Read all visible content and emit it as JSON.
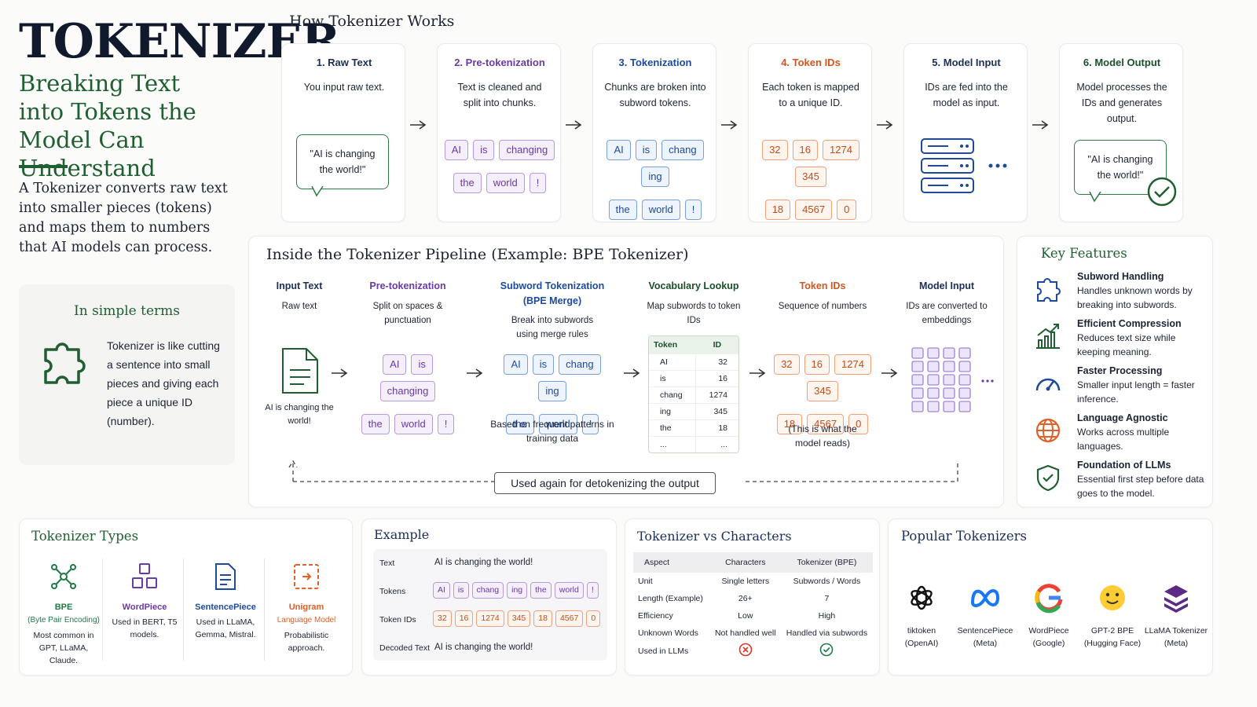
{
  "header": {
    "title": "TOKENIZER",
    "subtitle": "Breaking Text into Tokens the Model Can Understand",
    "description": "A Tokenizer converts raw text into smaller pieces (tokens) and maps them to numbers that AI models can process."
  },
  "simple_terms": {
    "title": "In simple terms",
    "text": "Tokenizer is like cutting a sentence into small pieces and giving each piece a unique ID (number)."
  },
  "how_it_works": {
    "title": "How Tokenizer Works",
    "steps": [
      {
        "title": "1. Raw Text",
        "text": "You input raw text.",
        "bubble": "\"AI is changing the world!\""
      },
      {
        "title": "2. Pre-tokenization",
        "text": "Text is cleaned and split into chunks.",
        "chunks": [
          "AI",
          "is",
          "changing",
          "the",
          "world",
          "!"
        ]
      },
      {
        "title": "3. Tokenization",
        "text": "Chunks are broken into subword tokens.",
        "chunks": [
          "AI",
          "is",
          "chang",
          "ing",
          "the",
          "world",
          "!"
        ]
      },
      {
        "title": "4. Token IDs",
        "text": "Each token is mapped to a unique ID.",
        "ids": [
          32,
          16,
          1274,
          345,
          18,
          4567,
          0
        ]
      },
      {
        "title": "5. Model Input",
        "text": "IDs are fed into the model as input."
      },
      {
        "title": "6. Model Output",
        "text": "Model processes the IDs and generates output.",
        "bubble": "\"AI is changing the world!\""
      }
    ]
  },
  "pipeline": {
    "title": "Inside the Tokenizer Pipeline (Example: BPE Tokenizer)",
    "stages": [
      {
        "title": "Input Text",
        "text": "Raw text",
        "caption": "AI is changing the world!"
      },
      {
        "title": "Pre-tokenization",
        "text": "Split on spaces & punctuation",
        "chunks": [
          "AI",
          "is",
          "changing",
          "the",
          "world",
          "!"
        ]
      },
      {
        "title": "Subword Tokenization (BPE Merge)",
        "text": "Break into subwords using merge rules",
        "chunks": [
          "AI",
          "is",
          "chang",
          "ing",
          "the",
          "world",
          "!"
        ],
        "caption": "Based on frequent patterns in training data"
      },
      {
        "title": "Vocabulary Lookup",
        "text": "Map subwords to token IDs",
        "table": {
          "header": [
            "Token",
            "ID"
          ],
          "rows": [
            [
              "AI",
              32
            ],
            [
              "is",
              16
            ],
            [
              "chang",
              1274
            ],
            [
              "ing",
              345
            ],
            [
              "the",
              18
            ],
            [
              "...",
              "..."
            ]
          ]
        }
      },
      {
        "title": "Token IDs",
        "text": "Sequence of numbers",
        "ids": [
          32,
          16,
          1274,
          345,
          18,
          4567,
          0
        ],
        "caption": "(This is what the model reads)"
      },
      {
        "title": "Model Input",
        "text": "IDs are converted to embeddings"
      }
    ],
    "loop_label": "Used again for detokenizing the output"
  },
  "key_features": {
    "title": "Key Features",
    "items": [
      {
        "title": "Subword Handling",
        "text": "Handles unknown words by breaking into subwords."
      },
      {
        "title": "Efficient Compression",
        "text": "Reduces text size while keeping meaning."
      },
      {
        "title": "Faster Processing",
        "text": "Smaller input length = faster inference."
      },
      {
        "title": "Language Agnostic",
        "text": "Works across multiple languages."
      },
      {
        "title": "Foundation of LLMs",
        "text": "Essential first step before data goes to the model."
      }
    ]
  },
  "tokenizer_types": {
    "title": "Tokenizer Types",
    "items": [
      {
        "name": "BPE",
        "note": "(Byte Pair Encoding)",
        "text": "Most common in GPT, LLaMA, Claude."
      },
      {
        "name": "WordPiece",
        "text": "Used in BERT, T5 models."
      },
      {
        "name": "SentencePiece",
        "text": "Used in LLaMA, Gemma, Mistral."
      },
      {
        "name": "Unigram",
        "note": "Language Model",
        "text": "Probabilistic approach."
      }
    ]
  },
  "example": {
    "title": "Example",
    "text_label": "Text",
    "text": "AI is changing the world!",
    "tokens_label": "Tokens",
    "tokens": [
      "AI",
      "is",
      "chang",
      "ing",
      "the",
      "world",
      "!"
    ],
    "ids_label": "Token IDs",
    "ids": [
      32,
      16,
      1274,
      345,
      18,
      4567,
      0
    ],
    "decoded_label": "Decoded Text",
    "decoded": "AI is changing the world!"
  },
  "comparison": {
    "title": "Tokenizer vs Characters",
    "header": [
      "Aspect",
      "Characters",
      "Tokenizer (BPE)"
    ],
    "rows": [
      [
        "Unit",
        "Single letters",
        "Subwords / Words"
      ],
      [
        "Length (Example)",
        "26+",
        7
      ],
      [
        "Efficiency",
        "Low",
        "High"
      ],
      [
        "Unknown Words",
        "Not handled well",
        "Handled via subwords"
      ]
    ],
    "icon_row_label": "Used in LLMs"
  },
  "popular": {
    "title": "Popular Tokenizers",
    "items": [
      {
        "name": "tiktoken",
        "org": "(OpenAI)"
      },
      {
        "name": "SentencePiece",
        "org": "(Meta)"
      },
      {
        "name": "WordPiece",
        "org": "(Google)"
      },
      {
        "name": "GPT-2 BPE",
        "org": "(Hugging Face)"
      },
      {
        "name": "LLaMA Tokenizer",
        "org": "(Meta)"
      }
    ]
  }
}
